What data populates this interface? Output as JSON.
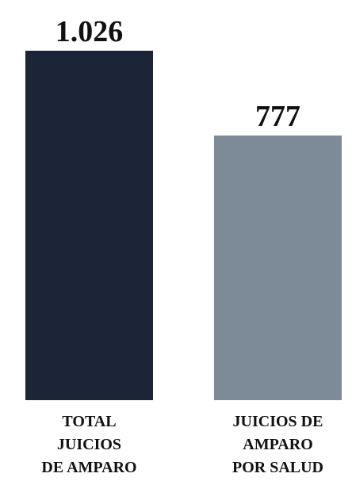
{
  "chart_data": {
    "type": "bar",
    "categories": [
      "TOTAL JUICIOS DE AMPARO",
      "JUICIOS DE AMPARO POR SALUD"
    ],
    "category_lines": [
      [
        "TOTAL",
        "JUICIOS",
        "DE AMPARO"
      ],
      [
        "JUICIOS DE",
        "AMPARO",
        "POR SALUD"
      ]
    ],
    "values": [
      1026,
      777
    ],
    "value_labels": [
      "1.026",
      "777"
    ],
    "colors": [
      "#1b2537",
      "#7d8b98"
    ],
    "title": "",
    "xlabel": "",
    "ylabel": "",
    "ylim": [
      0,
      1026
    ],
    "grid": false,
    "legend": "none"
  }
}
